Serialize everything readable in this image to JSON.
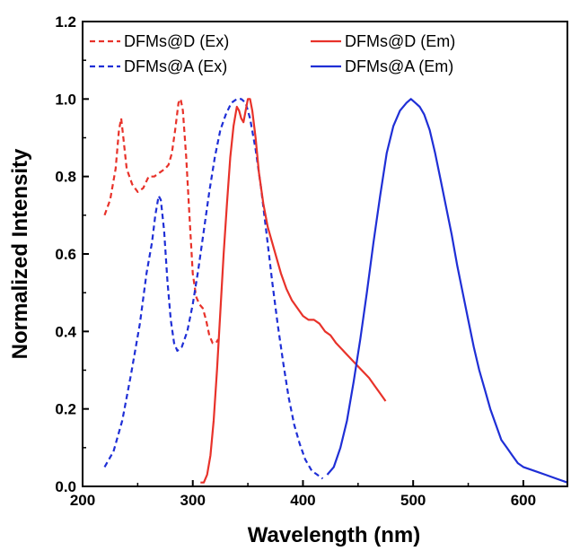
{
  "chart_data": {
    "type": "line",
    "title": "",
    "xlabel": "Wavelength (nm)",
    "ylabel": "Normalized Intensity",
    "xlim": [
      200,
      640
    ],
    "ylim": [
      0.0,
      1.2
    ],
    "xticks": [
      200,
      300,
      400,
      500,
      600
    ],
    "xtick_labels": [
      "200",
      "300",
      "400",
      "500",
      "600"
    ],
    "yticks": [
      0.0,
      0.2,
      0.4,
      0.6,
      0.8,
      1.0,
      1.2
    ],
    "ytick_labels": [
      "0.0",
      "0.2",
      "0.4",
      "0.6",
      "0.8",
      "1.0",
      "1.2"
    ],
    "grid": false,
    "legend_position": "top",
    "series": [
      {
        "name": "DFMs@D (Ex)",
        "color": "#e8322a",
        "dash": "dashed",
        "points": [
          [
            220,
            0.7
          ],
          [
            225,
            0.74
          ],
          [
            230,
            0.82
          ],
          [
            233,
            0.92
          ],
          [
            235,
            0.95
          ],
          [
            237,
            0.9
          ],
          [
            240,
            0.82
          ],
          [
            245,
            0.78
          ],
          [
            250,
            0.76
          ],
          [
            255,
            0.77
          ],
          [
            260,
            0.8
          ],
          [
            265,
            0.8
          ],
          [
            270,
            0.81
          ],
          [
            275,
            0.82
          ],
          [
            278,
            0.83
          ],
          [
            281,
            0.86
          ],
          [
            284,
            0.92
          ],
          [
            287,
            0.99
          ],
          [
            289,
            1.0
          ],
          [
            291,
            0.97
          ],
          [
            294,
            0.85
          ],
          [
            297,
            0.7
          ],
          [
            300,
            0.55
          ],
          [
            303,
            0.49
          ],
          [
            306,
            0.47
          ],
          [
            309,
            0.46
          ],
          [
            312,
            0.43
          ],
          [
            315,
            0.39
          ],
          [
            318,
            0.37
          ],
          [
            321,
            0.37
          ],
          [
            323,
            0.38
          ]
        ]
      },
      {
        "name": "DFMs@A (Ex)",
        "color": "#1f2fd6",
        "dash": "dashed",
        "points": [
          [
            220,
            0.05
          ],
          [
            228,
            0.09
          ],
          [
            236,
            0.17
          ],
          [
            244,
            0.29
          ],
          [
            252,
            0.42
          ],
          [
            258,
            0.55
          ],
          [
            263,
            0.63
          ],
          [
            266,
            0.7
          ],
          [
            269,
            0.75
          ],
          [
            271,
            0.74
          ],
          [
            274,
            0.66
          ],
          [
            277,
            0.53
          ],
          [
            280,
            0.43
          ],
          [
            283,
            0.37
          ],
          [
            286,
            0.35
          ],
          [
            290,
            0.36
          ],
          [
            295,
            0.4
          ],
          [
            300,
            0.47
          ],
          [
            305,
            0.56
          ],
          [
            310,
            0.66
          ],
          [
            315,
            0.76
          ],
          [
            320,
            0.85
          ],
          [
            325,
            0.92
          ],
          [
            330,
            0.96
          ],
          [
            335,
            0.99
          ],
          [
            340,
            1.0
          ],
          [
            344,
            1.0
          ],
          [
            348,
            0.99
          ],
          [
            352,
            0.95
          ],
          [
            357,
            0.87
          ],
          [
            362,
            0.77
          ],
          [
            367,
            0.65
          ],
          [
            372,
            0.53
          ],
          [
            377,
            0.42
          ],
          [
            382,
            0.32
          ],
          [
            387,
            0.23
          ],
          [
            392,
            0.16
          ],
          [
            397,
            0.11
          ],
          [
            402,
            0.07
          ],
          [
            408,
            0.04
          ],
          [
            413,
            0.03
          ],
          [
            418,
            0.02
          ]
        ]
      },
      {
        "name": "DFMs@D (Em)",
        "color": "#e8322a",
        "dash": "solid",
        "points": [
          [
            307,
            0.01
          ],
          [
            310,
            0.01
          ],
          [
            313,
            0.03
          ],
          [
            316,
            0.08
          ],
          [
            319,
            0.17
          ],
          [
            322,
            0.3
          ],
          [
            325,
            0.45
          ],
          [
            328,
            0.6
          ],
          [
            331,
            0.73
          ],
          [
            334,
            0.85
          ],
          [
            337,
            0.93
          ],
          [
            340,
            0.98
          ],
          [
            342,
            0.97
          ],
          [
            344,
            0.95
          ],
          [
            346,
            0.94
          ],
          [
            348,
            0.97
          ],
          [
            350,
            1.0
          ],
          [
            352,
            1.0
          ],
          [
            354,
            0.97
          ],
          [
            357,
            0.9
          ],
          [
            360,
            0.81
          ],
          [
            364,
            0.73
          ],
          [
            368,
            0.67
          ],
          [
            372,
            0.63
          ],
          [
            376,
            0.59
          ],
          [
            380,
            0.55
          ],
          [
            385,
            0.51
          ],
          [
            390,
            0.48
          ],
          [
            395,
            0.46
          ],
          [
            400,
            0.44
          ],
          [
            405,
            0.43
          ],
          [
            410,
            0.43
          ],
          [
            415,
            0.42
          ],
          [
            420,
            0.4
          ],
          [
            425,
            0.39
          ],
          [
            430,
            0.37
          ],
          [
            440,
            0.34
          ],
          [
            450,
            0.31
          ],
          [
            460,
            0.28
          ],
          [
            465,
            0.26
          ],
          [
            470,
            0.24
          ],
          [
            475,
            0.22
          ]
        ]
      },
      {
        "name": "DFMs@A (Em)",
        "color": "#1f2fd6",
        "dash": "solid",
        "points": [
          [
            422,
            0.03
          ],
          [
            428,
            0.05
          ],
          [
            434,
            0.1
          ],
          [
            440,
            0.17
          ],
          [
            446,
            0.27
          ],
          [
            452,
            0.38
          ],
          [
            458,
            0.5
          ],
          [
            464,
            0.63
          ],
          [
            470,
            0.75
          ],
          [
            476,
            0.86
          ],
          [
            482,
            0.93
          ],
          [
            488,
            0.97
          ],
          [
            494,
            0.99
          ],
          [
            498,
            1.0
          ],
          [
            502,
            0.99
          ],
          [
            506,
            0.98
          ],
          [
            510,
            0.96
          ],
          [
            515,
            0.92
          ],
          [
            520,
            0.86
          ],
          [
            525,
            0.79
          ],
          [
            530,
            0.72
          ],
          [
            535,
            0.65
          ],
          [
            540,
            0.57
          ],
          [
            545,
            0.5
          ],
          [
            550,
            0.43
          ],
          [
            555,
            0.36
          ],
          [
            560,
            0.3
          ],
          [
            565,
            0.25
          ],
          [
            570,
            0.2
          ],
          [
            575,
            0.16
          ],
          [
            580,
            0.12
          ],
          [
            585,
            0.1
          ],
          [
            590,
            0.08
          ],
          [
            595,
            0.06
          ],
          [
            600,
            0.05
          ],
          [
            610,
            0.04
          ],
          [
            620,
            0.03
          ],
          [
            630,
            0.02
          ],
          [
            640,
            0.01
          ]
        ]
      }
    ]
  }
}
